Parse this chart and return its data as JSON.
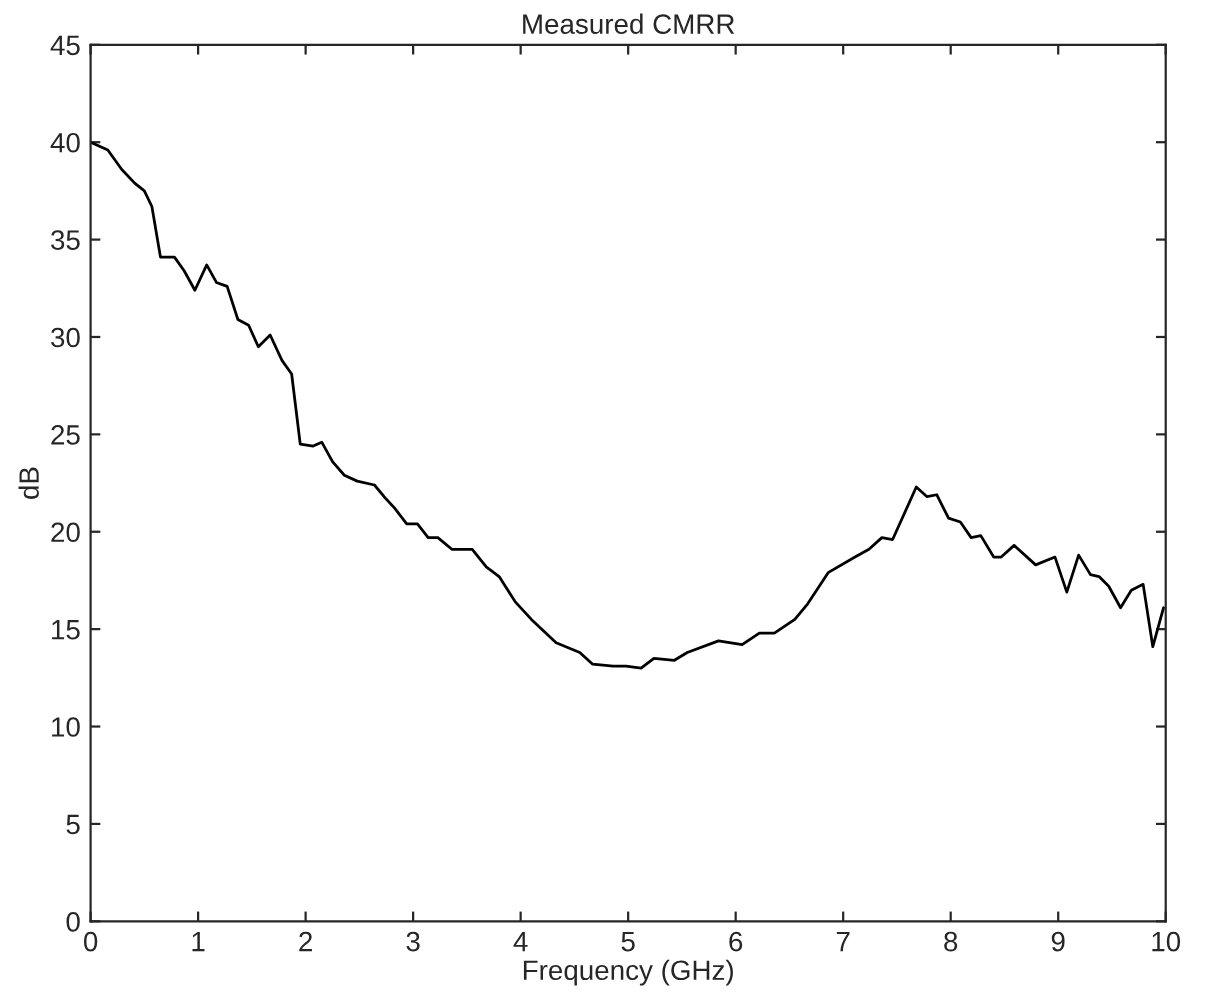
{
  "chart_data": {
    "type": "line",
    "title": "Measured CMRR",
    "xlabel": "Frequency (GHz)",
    "ylabel": "dB",
    "xlim": [
      0,
      10
    ],
    "ylim": [
      0,
      45
    ],
    "xticks": [
      0,
      1,
      2,
      3,
      4,
      5,
      6,
      7,
      8,
      9,
      10
    ],
    "yticks": [
      0,
      5,
      10,
      15,
      20,
      25,
      30,
      35,
      40,
      45
    ],
    "line_style": "solid",
    "marker": "none",
    "series": [
      {
        "color": "#000000",
        "x": [
          0,
          0.16,
          0.29,
          0.41,
          0.5,
          0.57,
          0.65,
          0.78,
          0.87,
          0.97,
          1.08,
          1.17,
          1.27,
          1.37,
          1.47,
          1.56,
          1.67,
          1.78,
          1.87,
          1.95,
          2.07,
          2.15,
          2.25,
          2.36,
          2.48,
          2.64,
          2.73,
          2.83,
          2.94,
          3.04,
          3.14,
          3.23,
          3.36,
          3.42,
          3.55,
          3.68,
          3.8,
          3.95,
          4.1,
          4.33,
          4.55,
          4.67,
          4.86,
          4.98,
          5.12,
          5.24,
          5.43,
          5.55,
          5.84,
          6.06,
          6.22,
          6.36,
          6.55,
          6.67,
          6.86,
          7.11,
          7.24,
          7.36,
          7.46,
          7.68,
          7.78,
          7.87,
          7.98,
          8.09,
          8.19,
          8.28,
          8.4,
          8.47,
          8.59,
          8.79,
          8.97,
          9.08,
          9.19,
          9.3,
          9.38,
          9.47,
          9.58,
          9.68,
          9.79,
          9.88,
          9.98
        ],
        "values": [
          40,
          39.6,
          38.6,
          37.9,
          37.5,
          36.7,
          34.1,
          34.1,
          33.4,
          32.4,
          33.7,
          32.8,
          32.6,
          30.9,
          30.6,
          29.5,
          30.1,
          28.8,
          28.1,
          24.5,
          24.4,
          24.6,
          23.6,
          22.9,
          22.6,
          22.4,
          21.8,
          21.2,
          20.4,
          20.4,
          19.7,
          19.7,
          19.1,
          19.1,
          19.1,
          18.2,
          17.7,
          16.4,
          15.5,
          14.3,
          13.8,
          13.2,
          13.1,
          13.1,
          13.0,
          13.5,
          13.4,
          13.8,
          14.4,
          14.2,
          14.8,
          14.8,
          15.5,
          16.3,
          17.9,
          18.7,
          19.1,
          19.7,
          19.6,
          22.3,
          21.8,
          21.9,
          20.7,
          20.5,
          19.7,
          19.8,
          18.7,
          18.7,
          19.3,
          18.3,
          18.7,
          16.9,
          18.8,
          17.8,
          17.7,
          17.2,
          16.1,
          17.0,
          17.3,
          14.1,
          16.1
        ]
      }
    ]
  }
}
